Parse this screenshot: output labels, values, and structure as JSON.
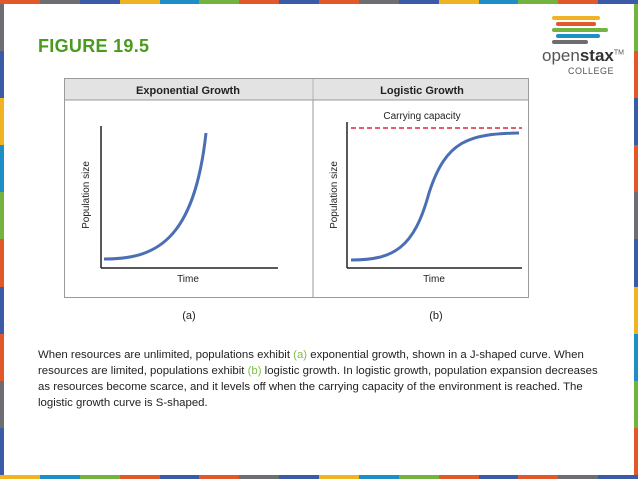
{
  "slide": {
    "title": "FIGURE 19.5",
    "border_colors": [
      "#e2582a",
      "#6d6e71",
      "#3b5aa8",
      "#f0b323",
      "#1e8fc4",
      "#73b43e",
      "#e2582a",
      "#3b5aa8"
    ]
  },
  "logo": {
    "name_part1": "open",
    "name_part2": "stax",
    "trademark": "TM",
    "subtitle": "COLLEGE",
    "bar_colors": [
      "#f0b323",
      "#e2582a",
      "#73b43e",
      "#1e8fc4",
      "#6d6e71"
    ]
  },
  "figure": {
    "panel_a": {
      "header": "Exponential Growth",
      "ylabel": "Population size",
      "xlabel": "Time",
      "label": "(a)"
    },
    "panel_b": {
      "header": "Logistic Growth",
      "ylabel": "Population size",
      "xlabel": "Time",
      "label": "(b)",
      "annotation": "Carrying capacity"
    },
    "colors": {
      "curve": "#4a6fb5",
      "capacity_line": "#d7263d",
      "header_bg": "#e3e3e3"
    }
  },
  "caption": {
    "part1": "When resources are unlimited, populations exhibit ",
    "ref_a": "(a)",
    "part2": " exponential growth, shown in a J-shaped curve. When resources are limited, populations exhibit ",
    "ref_b": "(b)",
    "part3": " logistic growth. In logistic growth, population expansion decreases as resources become scarce, and it levels off when the carrying capacity of the environment is reached. The logistic growth curve is S-shaped."
  }
}
